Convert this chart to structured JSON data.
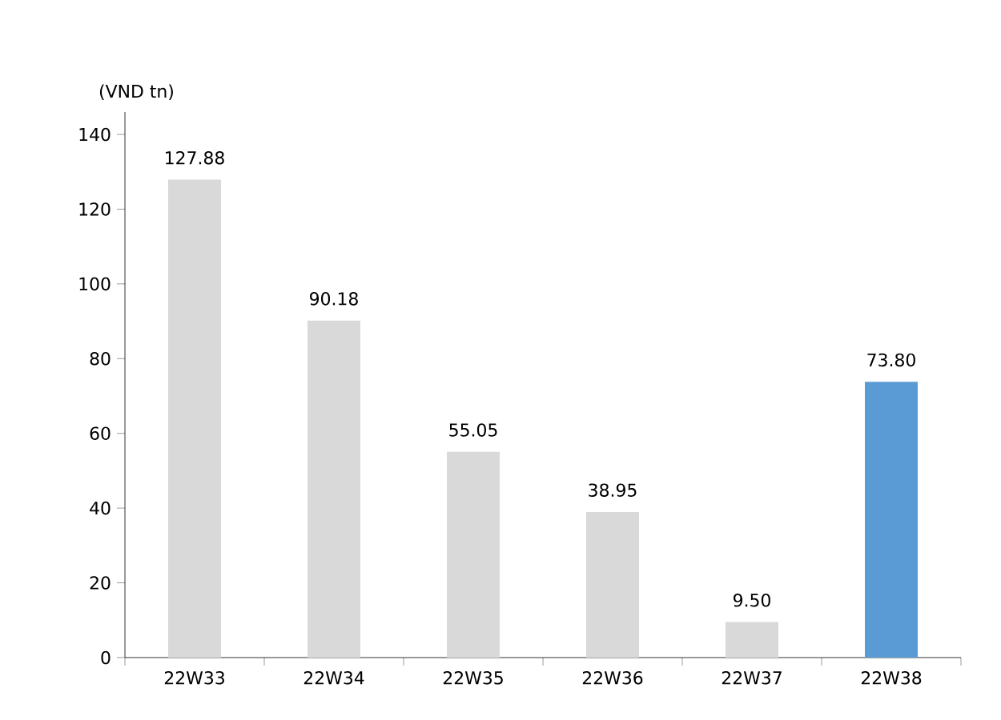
{
  "chart_data": {
    "type": "bar",
    "ylabel": "(VND tn)",
    "categories": [
      "22W33",
      "22W34",
      "22W35",
      "22W36",
      "22W37",
      "22W38"
    ],
    "values": [
      127.88,
      90.18,
      55.05,
      38.95,
      9.5,
      73.8
    ],
    "colors": [
      "#d9d9d9",
      "#d9d9d9",
      "#d9d9d9",
      "#d9d9d9",
      "#d9d9d9",
      "#5b9bd5"
    ],
    "value_labels": [
      "127.88",
      "90.18",
      "55.05",
      "38.95",
      "9.50",
      "73.80"
    ],
    "ylim": [
      0,
      146
    ],
    "yticks": [
      0,
      20,
      40,
      60,
      80,
      100,
      120,
      140
    ],
    "grid": false
  }
}
